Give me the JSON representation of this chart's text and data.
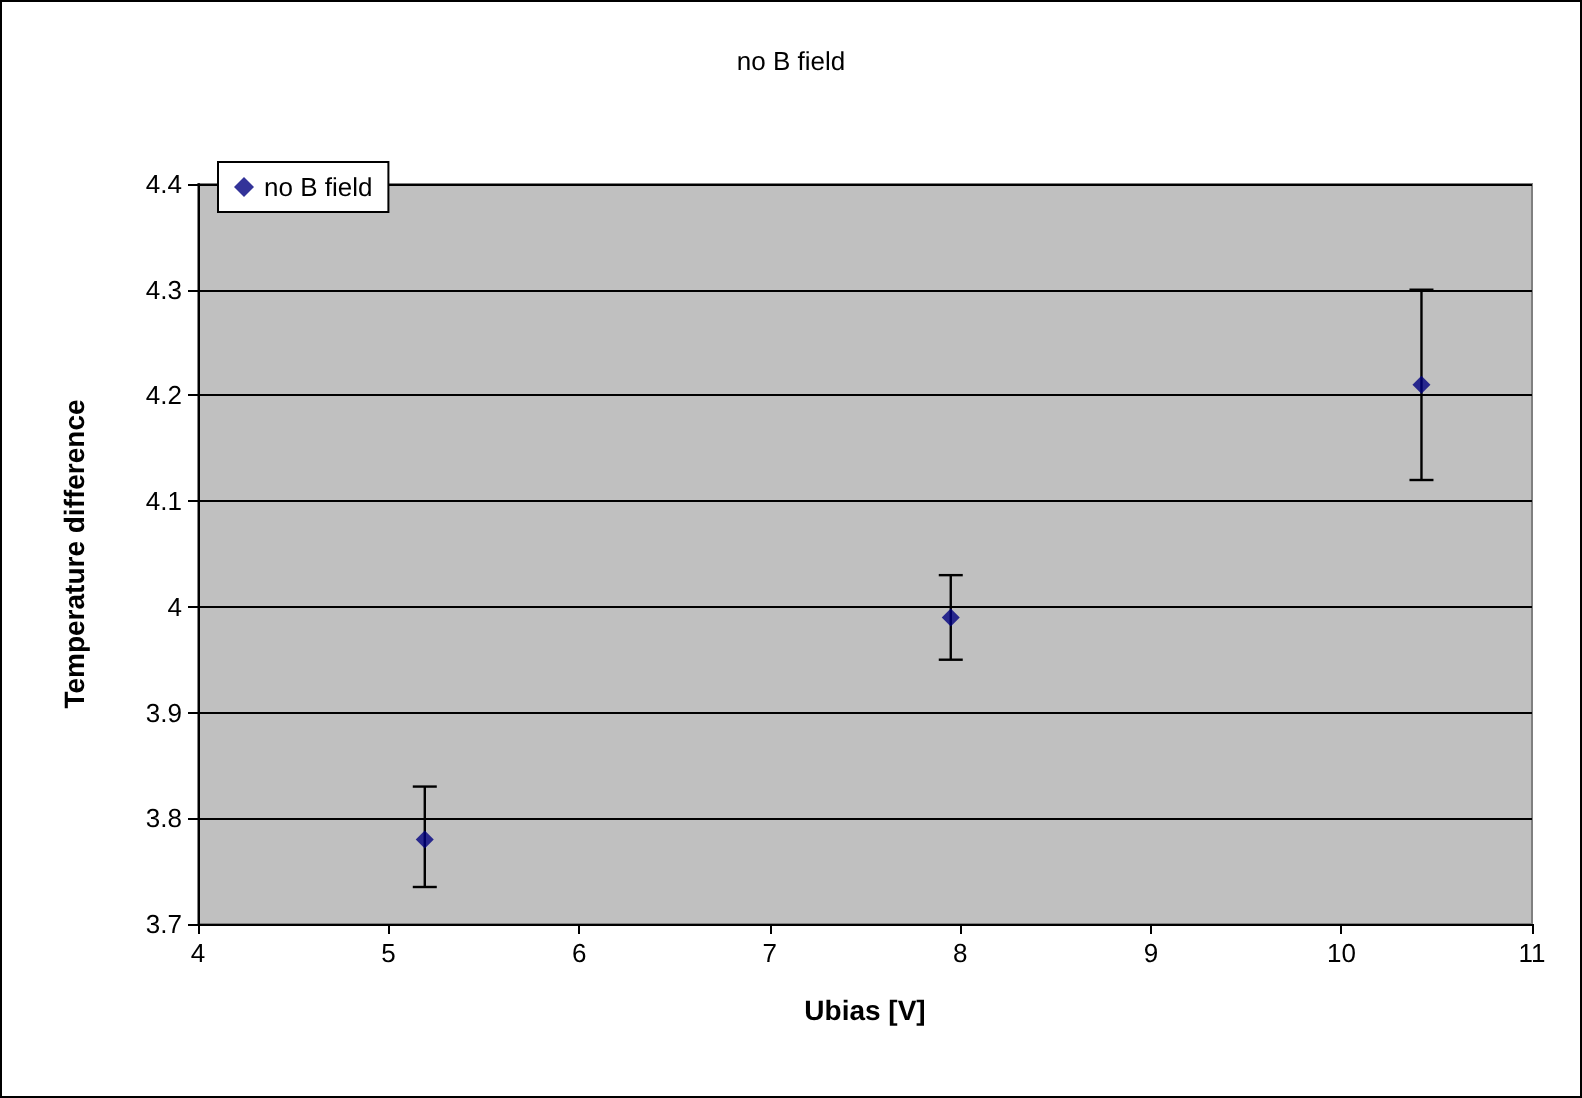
{
  "chart_data": {
    "type": "scatter",
    "title": "no B field",
    "xlabel": "Ubias [V]",
    "ylabel": "Temperature difference",
    "series": [
      {
        "name": "no B field",
        "color": "#000080",
        "x": [
          5.19,
          7.95,
          10.42
        ],
        "values": [
          3.78,
          3.99,
          4.21
        ],
        "errors": [
          [
            3.735,
            3.83
          ],
          [
            3.95,
            4.03
          ],
          [
            4.12,
            4.3
          ]
        ]
      }
    ],
    "xlim": [
      4,
      11
    ],
    "xticks": [
      4,
      5,
      6,
      7,
      8,
      9,
      10,
      11
    ],
    "ylim": [
      3.7,
      4.4
    ],
    "yticks": [
      3.7,
      3.8,
      3.9,
      4,
      4.1,
      4.2,
      4.3,
      4.4
    ],
    "grid": "y",
    "legend": "top left",
    "marker": "diamond"
  }
}
